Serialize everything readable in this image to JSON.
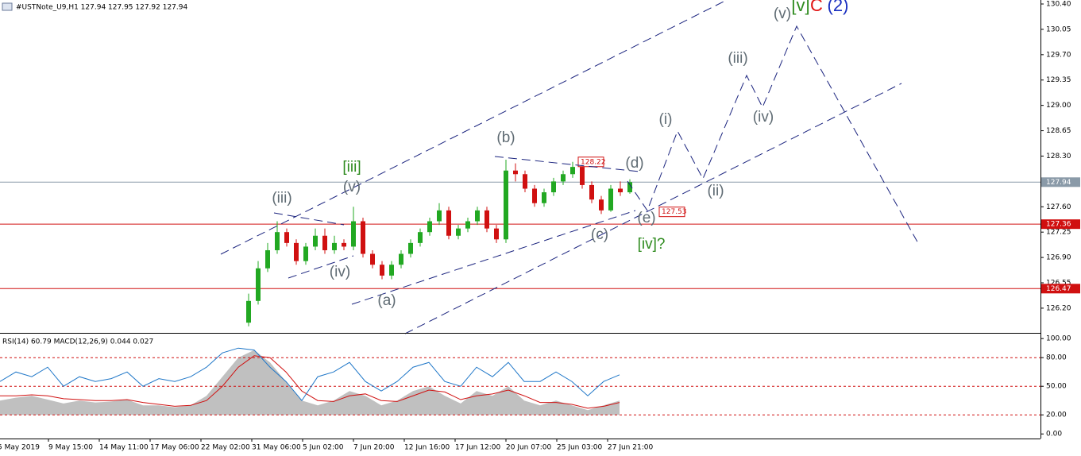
{
  "chart_data": {
    "type": "candlestick",
    "title": "#USTNote_U9,H1  127.94 127.95 127.92 127.94",
    "ylim": [
      125.87,
      130.455
    ],
    "yticks": [
      {
        "value": 130.4,
        "label": "130.40"
      },
      {
        "value": 130.05,
        "label": "130.05"
      },
      {
        "value": 129.7,
        "label": "129.70"
      },
      {
        "value": 129.35,
        "label": "129.35"
      },
      {
        "value": 129.0,
        "label": "129.00"
      },
      {
        "value": 128.65,
        "label": "128.65"
      },
      {
        "value": 128.3,
        "label": "128.30"
      },
      {
        "value": 127.95,
        "label": "127.95"
      },
      {
        "value": 127.6,
        "label": "127.60"
      },
      {
        "value": 127.25,
        "label": "127.25"
      },
      {
        "value": 126.9,
        "label": "126.90"
      },
      {
        "value": 126.55,
        "label": "126.55"
      },
      {
        "value": 126.2,
        "label": "126.20"
      }
    ],
    "x_labels": [
      "5 May 2019",
      "9 May 15:00",
      "14 May 11:00",
      "17 May 06:00",
      "22 May 02:00",
      "31 May 06:00",
      "5 Jun 02:00",
      "7 Jun 20:00",
      "12 Jun 16:00",
      "17 Jun 12:00",
      "20 Jun 07:00",
      "25 Jun 03:00",
      "27 Jun 21:00"
    ],
    "up_color": "#22a822",
    "down_color": "#d01010",
    "open": [
      126.0,
      126.3,
      126.75,
      127.0,
      127.25,
      127.1,
      126.85,
      127.05,
      127.2,
      127.0,
      127.1,
      127.05,
      127.4,
      126.95,
      126.8,
      126.65,
      126.8,
      126.95,
      127.1,
      127.25,
      127.4,
      127.55,
      127.2,
      127.3,
      127.4,
      127.55,
      127.3,
      127.15,
      128.1,
      128.05,
      127.85,
      127.65,
      127.8,
      127.95,
      128.05,
      128.15,
      127.9,
      127.7,
      127.55,
      127.85,
      127.8
    ],
    "high": [
      126.4,
      126.85,
      127.1,
      127.4,
      127.3,
      127.15,
      127.1,
      127.3,
      127.3,
      127.2,
      127.15,
      127.6,
      127.45,
      127.0,
      126.85,
      126.85,
      127.0,
      127.15,
      127.3,
      127.45,
      127.65,
      127.6,
      127.35,
      127.45,
      127.6,
      127.6,
      127.35,
      128.25,
      128.2,
      128.1,
      127.9,
      127.85,
      128.0,
      128.1,
      128.22,
      128.2,
      127.95,
      127.75,
      127.9,
      127.95,
      127.98
    ],
    "low": [
      125.95,
      126.25,
      126.7,
      126.95,
      127.05,
      126.8,
      126.8,
      127.0,
      126.95,
      126.95,
      127.0,
      127.0,
      126.9,
      126.75,
      126.6,
      126.6,
      126.75,
      126.9,
      127.05,
      127.2,
      127.35,
      127.15,
      127.15,
      127.25,
      127.35,
      127.25,
      127.1,
      127.1,
      127.95,
      127.8,
      127.6,
      127.6,
      127.75,
      127.9,
      128.0,
      127.85,
      127.65,
      127.5,
      127.53,
      127.75,
      127.78
    ],
    "close": [
      126.3,
      126.75,
      127.0,
      127.25,
      127.1,
      126.85,
      127.05,
      127.2,
      127.0,
      127.1,
      127.05,
      127.4,
      126.95,
      126.8,
      126.65,
      126.8,
      126.95,
      127.1,
      127.25,
      127.4,
      127.55,
      127.2,
      127.3,
      127.4,
      127.55,
      127.3,
      127.15,
      128.1,
      128.05,
      127.85,
      127.65,
      127.8,
      127.95,
      128.05,
      128.15,
      127.9,
      127.7,
      127.55,
      127.85,
      127.8,
      127.94
    ],
    "hlines": [
      {
        "value": 127.94,
        "label": "127.94",
        "color": "#8a9aa8"
      },
      {
        "value": 127.36,
        "label": "127.36",
        "color": "#d01010"
      },
      {
        "value": 126.47,
        "label": "126.47",
        "color": "#d01010"
      }
    ],
    "price_tags": [
      {
        "value": 128.22,
        "label": "128.22"
      },
      {
        "value": 127.53,
        "label": "127.53"
      }
    ],
    "annotations": [
      {
        "text": "(iii)",
        "color": "#5f6b73"
      },
      {
        "text": "[iii]",
        "color": "#2e8b1e"
      },
      {
        "text": "(v)",
        "color": "#5f6b73"
      },
      {
        "text": "(iv)",
        "color": "#5f6b73"
      },
      {
        "text": "(a)",
        "color": "#5f6b73"
      },
      {
        "text": "(b)",
        "color": "#5f6b73"
      },
      {
        "text": "(c)",
        "color": "#5f6b73"
      },
      {
        "text": "(d)",
        "color": "#5f6b73"
      },
      {
        "text": "(e)",
        "color": "#5f6b73"
      },
      {
        "text": "[iv]?",
        "color": "#2e8b1e"
      },
      {
        "text": "(i)",
        "color": "#5f6b73"
      },
      {
        "text": "(ii)",
        "color": "#5f6b73"
      },
      {
        "text": "(iii)",
        "color": "#5f6b73"
      },
      {
        "text": "(iv)",
        "color": "#5f6b73"
      },
      {
        "text": "(v)",
        "color": "#5f6b73"
      },
      {
        "text": "[v]",
        "color": "#2e8b1e"
      },
      {
        "text": "C",
        "color": "#e01010"
      },
      {
        "text": "(2)",
        "color": "#1a2fc0"
      }
    ],
    "indicator": {
      "label": "RSI(14) 60.79 MACD(12,26,9) 0.044 0.027",
      "ylim": [
        -4.8,
        103.5
      ],
      "yticks": [
        {
          "value": 100,
          "label": "100.00"
        },
        {
          "value": 80,
          "label": "80.00"
        },
        {
          "value": 50,
          "label": "50.00"
        },
        {
          "value": 20,
          "label": "20.00"
        },
        {
          "value": 0,
          "label": "0.00"
        }
      ],
      "levels": [
        80,
        50,
        20
      ],
      "rsi": [
        55,
        65,
        60,
        70,
        50,
        60,
        55,
        58,
        65,
        50,
        58,
        55,
        60,
        70,
        85,
        90,
        88,
        70,
        55,
        35,
        60,
        65,
        75,
        55,
        45,
        55,
        70,
        75,
        55,
        50,
        70,
        60,
        75,
        55,
        55,
        65,
        55,
        40,
        55,
        62
      ],
      "macd_hist": [
        35,
        38,
        40,
        36,
        32,
        35,
        33,
        34,
        36,
        30,
        30,
        28,
        30,
        40,
        60,
        80,
        88,
        75,
        55,
        35,
        30,
        35,
        45,
        40,
        30,
        35,
        45,
        50,
        40,
        32,
        45,
        40,
        50,
        35,
        30,
        35,
        30,
        25,
        30,
        35
      ],
      "macd_signal": [
        40,
        40,
        41,
        40,
        37,
        36,
        35,
        35,
        36,
        33,
        31,
        29,
        30,
        35,
        50,
        70,
        82,
        80,
        65,
        45,
        35,
        34,
        40,
        42,
        35,
        34,
        40,
        46,
        44,
        36,
        40,
        42,
        46,
        40,
        33,
        33,
        31,
        27,
        29,
        33
      ],
      "rsi_color": "#1f77c8",
      "hist_color": "#c0c0c0",
      "signal_color": "#d01010"
    }
  }
}
